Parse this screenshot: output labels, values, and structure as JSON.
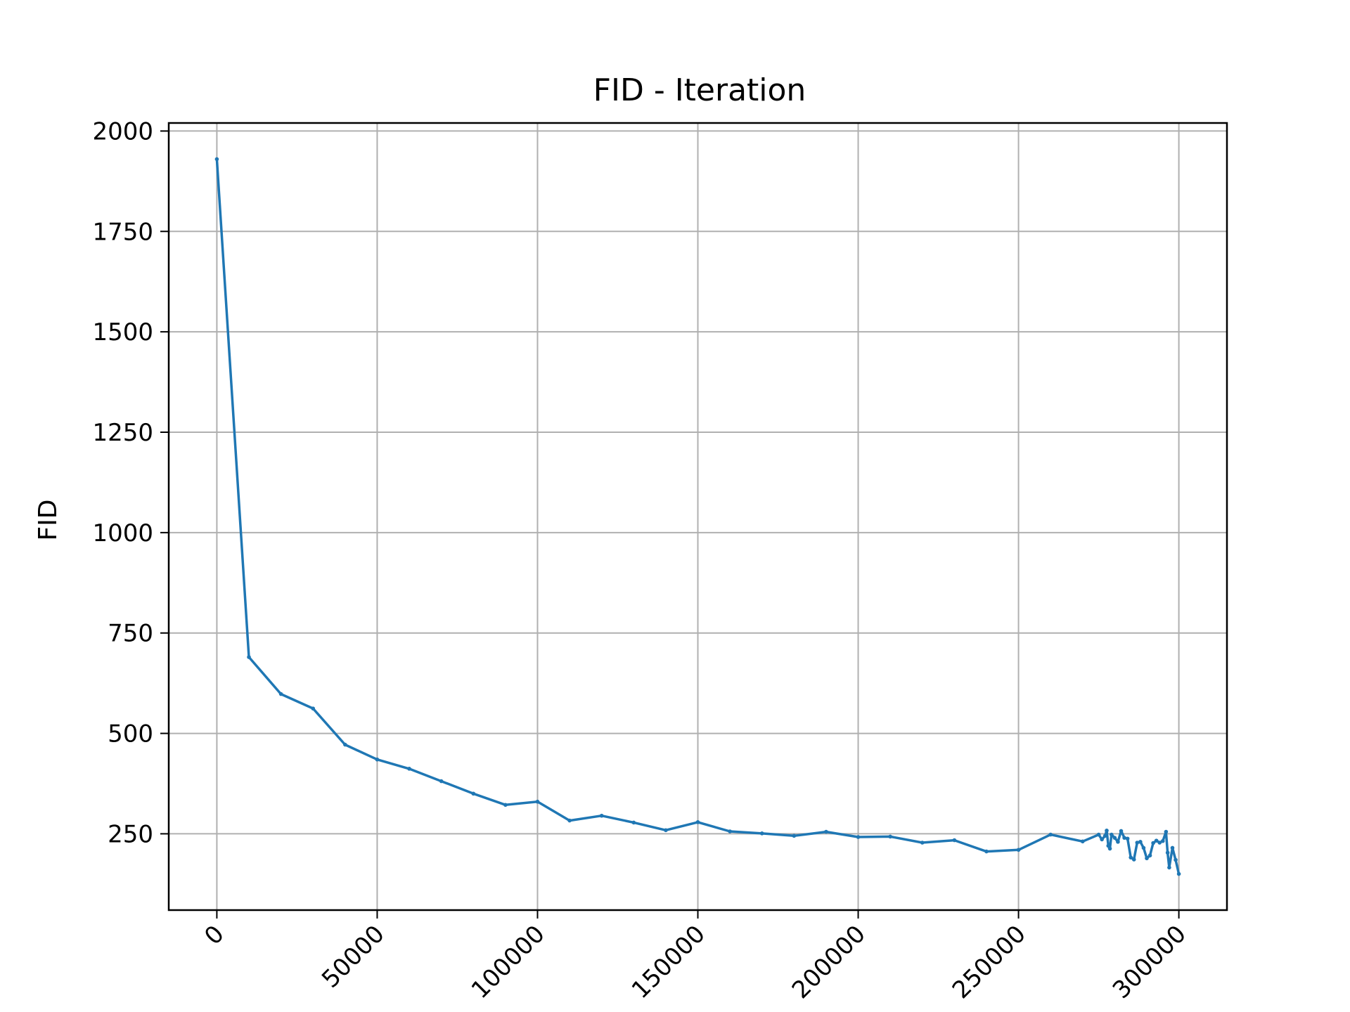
{
  "chart_data": {
    "type": "line",
    "title": "FID - Iteration",
    "xlabel": "",
    "ylabel": "FID",
    "xlim": [
      -15000,
      315000
    ],
    "ylim": [
      60,
      2020
    ],
    "grid": true,
    "xticks": [
      0,
      50000,
      100000,
      150000,
      200000,
      250000,
      300000
    ],
    "xtick_labels": [
      "0",
      "50000",
      "100000",
      "150000",
      "200000",
      "250000",
      "300000"
    ],
    "yticks": [
      250,
      500,
      750,
      1000,
      1250,
      1500,
      1750,
      2000
    ],
    "ytick_labels": [
      "250",
      "500",
      "750",
      "1000",
      "1250",
      "1500",
      "1750",
      "2000"
    ],
    "colors": {
      "line": "#1f77b4",
      "grid": "#b0b0b0",
      "axes": "#000000"
    },
    "series": [
      {
        "x": [
          0,
          10000,
          20000,
          30000,
          40000,
          50000,
          60000,
          70000,
          80000,
          90000,
          100000,
          110000,
          120000,
          130000,
          140000,
          150000,
          160000,
          170000,
          180000,
          190000,
          200000,
          210000,
          220000,
          230000,
          240000,
          250000,
          260000,
          270000,
          275000,
          276000,
          277000,
          277500,
          278000,
          278500,
          279000,
          280000,
          281000,
          282000,
          283000,
          284000,
          285000,
          286000,
          287000,
          288000,
          289000,
          290000,
          291000,
          292000,
          293000,
          294000,
          295000,
          296000,
          296500,
          297000,
          298000,
          299000,
          300000
        ],
        "y": [
          1930,
          690,
          598,
          562,
          472,
          435,
          412,
          381,
          350,
          322,
          330,
          283,
          295,
          278,
          259,
          279,
          256,
          251,
          245,
          255,
          242,
          243,
          228,
          234,
          206,
          210,
          248,
          231,
          248,
          236,
          245,
          258,
          220,
          213,
          248,
          240,
          230,
          257,
          240,
          238,
          191,
          186,
          228,
          230,
          215,
          189,
          196,
          227,
          233,
          228,
          232,
          255,
          203,
          166,
          215,
          185,
          150
        ]
      }
    ]
  }
}
